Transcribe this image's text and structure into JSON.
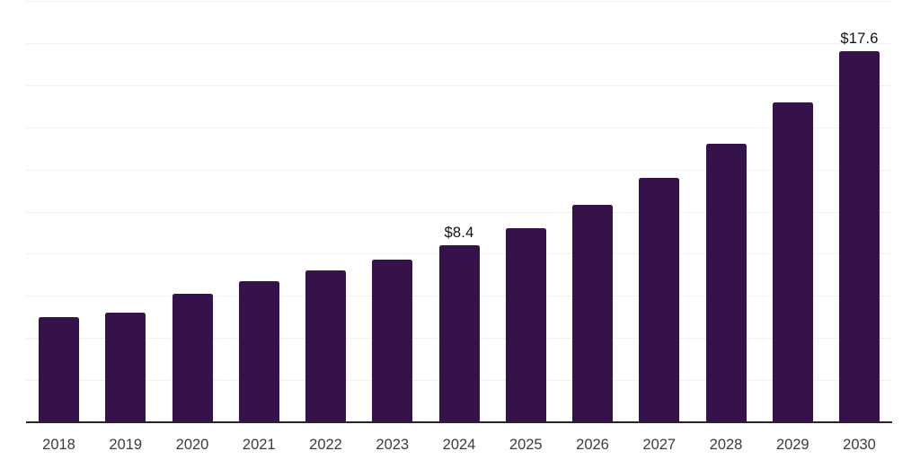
{
  "chart_data": {
    "type": "bar",
    "title": "",
    "xlabel": "",
    "ylabel": "",
    "categories": [
      "2018",
      "2019",
      "2020",
      "2021",
      "2022",
      "2023",
      "2024",
      "2025",
      "2026",
      "2027",
      "2028",
      "2029",
      "2030"
    ],
    "values": [
      5.0,
      5.2,
      6.1,
      6.7,
      7.2,
      7.7,
      8.4,
      9.2,
      10.3,
      11.6,
      13.2,
      15.2,
      17.6
    ],
    "data_labels": [
      "",
      "",
      "",
      "",
      "",
      "",
      "$8.4",
      "",
      "",
      "",
      "",
      "",
      "$17.6"
    ],
    "ylim": [
      0,
      20
    ],
    "grid_step": 2,
    "grid": true,
    "legend": false,
    "legend_position": "none"
  },
  "style": {
    "bar_color": "#351249",
    "gridline_color": "#f1f1f1",
    "axis_line_color": "#262626",
    "value_label_color": "#111111",
    "tick_label_color": "#3c3c3c",
    "background_color": "#ffffff"
  }
}
